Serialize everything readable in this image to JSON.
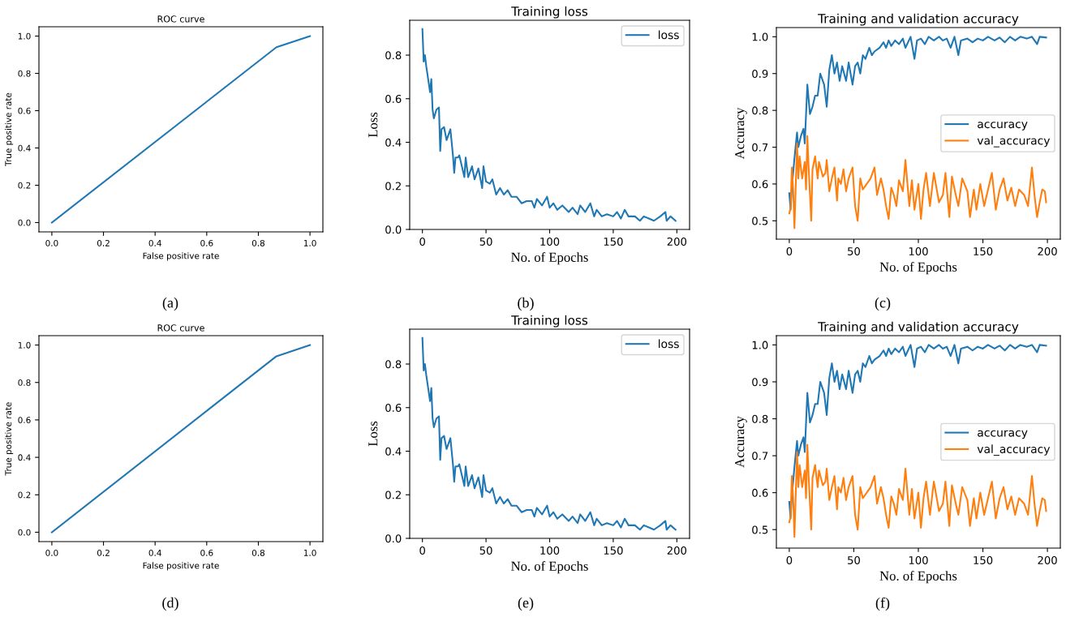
{
  "chart_data": [
    {
      "type": "line",
      "title": "ROC curve",
      "xlabel": "False positive rate",
      "ylabel": "True positive rate",
      "annotations": [
        "(a)"
      ],
      "grid": false,
      "legend": false,
      "series": [
        {
          "color": "#1f77b4",
          "x": [
            0,
            0.87,
            1
          ],
          "values": [
            0,
            0.94,
            1
          ]
        }
      ],
      "xlim": [
        -0.05,
        1.05
      ],
      "ylim": [
        -0.05,
        1.05
      ],
      "xticks": [
        {
          "value": 0,
          "label": "0.0"
        },
        {
          "value": 0.2,
          "label": "0.2"
        },
        {
          "value": 0.4,
          "label": "0.4"
        },
        {
          "value": 0.6,
          "label": "0.6"
        },
        {
          "value": 0.8,
          "label": "0.8"
        },
        {
          "value": 1,
          "label": "1.0"
        }
      ],
      "yticks": [
        {
          "value": 0,
          "label": "0.0"
        },
        {
          "value": 0.2,
          "label": "0.2"
        },
        {
          "value": 0.4,
          "label": "0.4"
        },
        {
          "value": 0.6,
          "label": "0.6"
        },
        {
          "value": 0.8,
          "label": "0.8"
        },
        {
          "value": 1,
          "label": "1.0"
        }
      ]
    },
    {
      "type": "line",
      "title": "Training loss",
      "xlabel": "No. of Epochs",
      "ylabel": "Loss",
      "annotations": [
        "(b)"
      ],
      "grid": false,
      "legend": "top right",
      "series": [
        {
          "name": "loss",
          "color": "#1f77b4",
          "x": [
            0,
            1,
            2,
            3,
            6,
            7,
            8,
            9,
            11,
            13,
            14,
            15,
            17,
            19,
            22,
            24,
            25,
            26,
            28,
            29,
            31,
            33,
            34,
            36,
            39,
            41,
            44,
            47,
            48,
            50,
            53,
            55,
            58,
            61,
            64,
            67,
            70,
            74,
            78,
            82,
            86,
            88,
            90,
            94,
            98,
            100,
            103,
            106,
            110,
            115,
            118,
            122,
            124,
            128,
            132,
            135,
            137,
            141,
            145,
            150,
            153,
            156,
            159,
            162,
            167,
            171,
            174,
            178,
            182,
            187,
            191,
            192,
            195,
            199
          ],
          "values": [
            0.92,
            0.77,
            0.8,
            0.75,
            0.63,
            0.69,
            0.55,
            0.51,
            0.55,
            0.56,
            0.36,
            0.46,
            0.47,
            0.41,
            0.46,
            0.34,
            0.26,
            0.33,
            0.33,
            0.34,
            0.29,
            0.24,
            0.33,
            0.24,
            0.29,
            0.23,
            0.28,
            0.19,
            0.29,
            0.22,
            0.21,
            0.23,
            0.16,
            0.19,
            0.16,
            0.18,
            0.15,
            0.15,
            0.12,
            0.13,
            0.13,
            0.1,
            0.14,
            0.11,
            0.15,
            0.1,
            0.12,
            0.09,
            0.11,
            0.08,
            0.1,
            0.07,
            0.11,
            0.08,
            0.12,
            0.06,
            0.09,
            0.06,
            0.07,
            0.06,
            0.08,
            0.05,
            0.09,
            0.06,
            0.06,
            0.04,
            0.06,
            0.05,
            0.04,
            0.06,
            0.08,
            0.04,
            0.06,
            0.04
          ]
        }
      ],
      "xlim": [
        -10,
        210
      ],
      "ylim": [
        0,
        0.96
      ],
      "xticks": [
        0,
        50,
        100,
        150,
        200
      ],
      "yticks": [
        {
          "value": 0,
          "label": "0.0"
        },
        {
          "value": 0.2,
          "label": "0.2"
        },
        {
          "value": 0.4,
          "label": "0.4"
        },
        {
          "value": 0.6,
          "label": "0.6"
        },
        {
          "value": 0.8,
          "label": "0.8"
        }
      ]
    },
    {
      "type": "line",
      "title": "Training and validation accuracy",
      "xlabel": "No. of Epochs",
      "ylabel": "Accuracy",
      "annotations": [
        "(c)"
      ],
      "grid": false,
      "legend": "right",
      "series": [
        {
          "name": "accuracy",
          "color": "#1f77b4",
          "x": [
            0,
            1,
            2,
            4,
            6,
            7,
            9,
            11,
            12,
            14,
            16,
            18,
            20,
            22,
            24,
            27,
            29,
            31,
            33,
            35,
            37,
            39,
            41,
            44,
            46,
            49,
            51,
            53,
            55,
            57,
            59,
            62,
            64,
            66,
            70,
            73,
            75,
            77,
            79,
            82,
            85,
            88,
            90,
            94,
            97,
            99,
            102,
            105,
            108,
            112,
            116,
            119,
            122,
            125,
            128,
            131,
            133,
            138,
            142,
            146,
            150,
            154,
            159,
            163,
            167,
            171,
            175,
            179,
            184,
            188,
            192,
            194,
            199
          ],
          "values": [
            0.575,
            0.53,
            0.59,
            0.67,
            0.74,
            0.7,
            0.73,
            0.75,
            0.71,
            0.87,
            0.79,
            0.81,
            0.84,
            0.84,
            0.9,
            0.87,
            0.81,
            0.91,
            0.95,
            0.9,
            0.93,
            0.88,
            0.92,
            0.88,
            0.93,
            0.87,
            0.92,
            0.93,
            0.9,
            0.95,
            0.94,
            0.97,
            0.95,
            0.96,
            0.97,
            0.985,
            0.97,
            0.99,
            0.975,
            0.99,
            0.98,
            0.995,
            0.97,
            1.0,
            0.94,
            0.99,
            0.995,
            0.98,
            1.0,
            0.99,
            1.0,
            0.99,
            0.995,
            0.97,
            1.0,
            0.95,
            0.99,
            0.995,
            0.985,
            0.995,
            0.99,
            1.0,
            0.99,
            0.998,
            0.985,
            1.0,
            0.99,
            1.0,
            0.995,
            1.0,
            0.98,
            1.0,
            0.998
          ]
        },
        {
          "name": "val_accuracy",
          "color": "#ff7f0e",
          "x": [
            0,
            1,
            2,
            3,
            4,
            6,
            7,
            8,
            10,
            12,
            13,
            14,
            15,
            17,
            18,
            20,
            22,
            23,
            26,
            28,
            29,
            31,
            33,
            35,
            37,
            38,
            40,
            42,
            44,
            46,
            49,
            51,
            53,
            55,
            57,
            60,
            63,
            66,
            68,
            71,
            73,
            75,
            77,
            79,
            81,
            83,
            85,
            88,
            90,
            93,
            95,
            97,
            100,
            102,
            104,
            106,
            109,
            112,
            116,
            119,
            121,
            124,
            126,
            129,
            131,
            134,
            138,
            140,
            143,
            145,
            148,
            151,
            154,
            157,
            160,
            163,
            166,
            169,
            172,
            175,
            178,
            182,
            185,
            188,
            190,
            192,
            194,
            196,
            198,
            199
          ],
          "values": [
            0.52,
            0.535,
            0.645,
            0.585,
            0.48,
            0.71,
            0.615,
            0.675,
            0.615,
            0.66,
            0.585,
            0.73,
            0.645,
            0.5,
            0.64,
            0.675,
            0.615,
            0.66,
            0.62,
            0.63,
            0.665,
            0.58,
            0.615,
            0.645,
            0.555,
            0.615,
            0.6,
            0.64,
            0.58,
            0.615,
            0.645,
            0.54,
            0.5,
            0.615,
            0.585,
            0.6,
            0.615,
            0.645,
            0.57,
            0.615,
            0.585,
            0.54,
            0.505,
            0.59,
            0.57,
            0.54,
            0.61,
            0.58,
            0.665,
            0.54,
            0.61,
            0.53,
            0.6,
            0.505,
            0.585,
            0.63,
            0.54,
            0.63,
            0.55,
            0.57,
            0.63,
            0.51,
            0.62,
            0.57,
            0.54,
            0.615,
            0.58,
            0.51,
            0.585,
            0.53,
            0.6,
            0.54,
            0.585,
            0.63,
            0.53,
            0.585,
            0.615,
            0.555,
            0.59,
            0.54,
            0.585,
            0.57,
            0.54,
            0.645,
            0.57,
            0.51,
            0.55,
            0.585,
            0.58,
            0.55
          ]
        }
      ],
      "xlim": [
        -10,
        210
      ],
      "ylim": [
        0.45,
        1.025
      ],
      "xticks": [
        0,
        50,
        100,
        150,
        200
      ],
      "yticks": [
        {
          "value": 0.5,
          "label": "0.5"
        },
        {
          "value": 0.6,
          "label": "0.6"
        },
        {
          "value": 0.7,
          "label": "0.7"
        },
        {
          "value": 0.8,
          "label": "0.8"
        },
        {
          "value": 0.9,
          "label": "0.9"
        },
        {
          "value": 1.0,
          "label": "1.0"
        }
      ]
    },
    {
      "type": "line",
      "title": "ROC curve",
      "xlabel": "False positive rate",
      "ylabel": "True positive rate",
      "annotations": [
        "(d)"
      ],
      "grid": false,
      "legend": false,
      "series": [
        {
          "color": "#1f77b4",
          "x": [
            0,
            0.87,
            1
          ],
          "values": [
            0,
            0.94,
            1
          ]
        }
      ],
      "xlim": [
        -0.05,
        1.05
      ],
      "ylim": [
        -0.05,
        1.05
      ],
      "xticks": [
        {
          "value": 0,
          "label": "0.0"
        },
        {
          "value": 0.2,
          "label": "0.2"
        },
        {
          "value": 0.4,
          "label": "0.4"
        },
        {
          "value": 0.6,
          "label": "0.6"
        },
        {
          "value": 0.8,
          "label": "0.8"
        },
        {
          "value": 1,
          "label": "1.0"
        }
      ],
      "yticks": [
        {
          "value": 0,
          "label": "0.0"
        },
        {
          "value": 0.2,
          "label": "0.2"
        },
        {
          "value": 0.4,
          "label": "0.4"
        },
        {
          "value": 0.6,
          "label": "0.6"
        },
        {
          "value": 0.8,
          "label": "0.8"
        },
        {
          "value": 1,
          "label": "1.0"
        }
      ]
    },
    {
      "type": "line",
      "title": "Training loss",
      "xlabel": "No. of Epochs",
      "ylabel": "Loss",
      "annotations": [
        "(e)"
      ],
      "grid": false,
      "legend": "top right",
      "series": [
        {
          "name": "loss",
          "color": "#1f77b4",
          "x": [
            0,
            1,
            2,
            3,
            6,
            7,
            8,
            9,
            11,
            13,
            14,
            15,
            17,
            19,
            22,
            24,
            25,
            26,
            28,
            29,
            31,
            33,
            34,
            36,
            39,
            41,
            44,
            47,
            48,
            50,
            53,
            55,
            58,
            61,
            64,
            67,
            70,
            74,
            78,
            82,
            86,
            88,
            90,
            94,
            98,
            100,
            103,
            106,
            110,
            115,
            118,
            122,
            124,
            128,
            132,
            135,
            137,
            141,
            145,
            150,
            153,
            156,
            159,
            162,
            167,
            171,
            174,
            178,
            182,
            187,
            191,
            192,
            195,
            199
          ],
          "values": [
            0.92,
            0.77,
            0.8,
            0.75,
            0.63,
            0.69,
            0.55,
            0.51,
            0.55,
            0.56,
            0.36,
            0.46,
            0.47,
            0.41,
            0.46,
            0.34,
            0.26,
            0.33,
            0.33,
            0.34,
            0.29,
            0.24,
            0.33,
            0.24,
            0.29,
            0.23,
            0.28,
            0.19,
            0.29,
            0.22,
            0.21,
            0.23,
            0.16,
            0.19,
            0.16,
            0.18,
            0.15,
            0.15,
            0.12,
            0.13,
            0.13,
            0.1,
            0.14,
            0.11,
            0.15,
            0.1,
            0.12,
            0.09,
            0.11,
            0.08,
            0.1,
            0.07,
            0.11,
            0.08,
            0.12,
            0.06,
            0.09,
            0.06,
            0.07,
            0.06,
            0.08,
            0.05,
            0.09,
            0.06,
            0.06,
            0.04,
            0.06,
            0.05,
            0.04,
            0.06,
            0.08,
            0.04,
            0.06,
            0.04
          ]
        }
      ],
      "xlim": [
        -10,
        210
      ],
      "ylim": [
        0,
        0.96
      ],
      "xticks": [
        0,
        50,
        100,
        150,
        200
      ],
      "yticks": [
        {
          "value": 0,
          "label": "0.0"
        },
        {
          "value": 0.2,
          "label": "0.2"
        },
        {
          "value": 0.4,
          "label": "0.4"
        },
        {
          "value": 0.6,
          "label": "0.6"
        },
        {
          "value": 0.8,
          "label": "0.8"
        }
      ]
    },
    {
      "type": "line",
      "title": "Training and validation accuracy",
      "xlabel": "No. of Epochs",
      "ylabel": "Accuracy",
      "annotations": [
        "(f)"
      ],
      "grid": false,
      "legend": "right",
      "series": [
        {
          "name": "accuracy",
          "color": "#1f77b4",
          "x": [
            0,
            1,
            2,
            4,
            6,
            7,
            9,
            11,
            12,
            14,
            16,
            18,
            20,
            22,
            24,
            27,
            29,
            31,
            33,
            35,
            37,
            39,
            41,
            44,
            46,
            49,
            51,
            53,
            55,
            57,
            59,
            62,
            64,
            66,
            70,
            73,
            75,
            77,
            79,
            82,
            85,
            88,
            90,
            94,
            97,
            99,
            102,
            105,
            108,
            112,
            116,
            119,
            122,
            125,
            128,
            131,
            133,
            138,
            142,
            146,
            150,
            154,
            159,
            163,
            167,
            171,
            175,
            179,
            184,
            188,
            192,
            194,
            199
          ],
          "values": [
            0.575,
            0.53,
            0.59,
            0.67,
            0.74,
            0.7,
            0.73,
            0.75,
            0.71,
            0.87,
            0.79,
            0.81,
            0.84,
            0.84,
            0.9,
            0.87,
            0.81,
            0.91,
            0.95,
            0.9,
            0.93,
            0.88,
            0.92,
            0.88,
            0.93,
            0.87,
            0.92,
            0.93,
            0.9,
            0.95,
            0.94,
            0.97,
            0.95,
            0.96,
            0.97,
            0.985,
            0.97,
            0.99,
            0.975,
            0.99,
            0.98,
            0.995,
            0.97,
            1.0,
            0.94,
            0.99,
            0.995,
            0.98,
            1.0,
            0.99,
            1.0,
            0.99,
            0.995,
            0.97,
            1.0,
            0.95,
            0.99,
            0.995,
            0.985,
            0.995,
            0.99,
            1.0,
            0.99,
            0.998,
            0.985,
            1.0,
            0.99,
            1.0,
            0.995,
            1.0,
            0.98,
            1.0,
            0.998
          ]
        },
        {
          "name": "val_accuracy",
          "color": "#ff7f0e",
          "x": [
            0,
            1,
            2,
            3,
            4,
            6,
            7,
            8,
            10,
            12,
            13,
            14,
            15,
            17,
            18,
            20,
            22,
            23,
            26,
            28,
            29,
            31,
            33,
            35,
            37,
            38,
            40,
            42,
            44,
            46,
            49,
            51,
            53,
            55,
            57,
            60,
            63,
            66,
            68,
            71,
            73,
            75,
            77,
            79,
            81,
            83,
            85,
            88,
            90,
            93,
            95,
            97,
            100,
            102,
            104,
            106,
            109,
            112,
            116,
            119,
            121,
            124,
            126,
            129,
            131,
            134,
            138,
            140,
            143,
            145,
            148,
            151,
            154,
            157,
            160,
            163,
            166,
            169,
            172,
            175,
            178,
            182,
            185,
            188,
            190,
            192,
            194,
            196,
            198,
            199
          ],
          "values": [
            0.52,
            0.535,
            0.645,
            0.585,
            0.48,
            0.71,
            0.615,
            0.675,
            0.615,
            0.66,
            0.585,
            0.73,
            0.645,
            0.5,
            0.64,
            0.675,
            0.615,
            0.66,
            0.62,
            0.63,
            0.665,
            0.58,
            0.615,
            0.645,
            0.555,
            0.615,
            0.6,
            0.64,
            0.58,
            0.615,
            0.645,
            0.54,
            0.5,
            0.615,
            0.585,
            0.6,
            0.615,
            0.645,
            0.57,
            0.615,
            0.585,
            0.54,
            0.505,
            0.59,
            0.57,
            0.54,
            0.61,
            0.58,
            0.665,
            0.54,
            0.61,
            0.53,
            0.6,
            0.505,
            0.585,
            0.63,
            0.54,
            0.63,
            0.55,
            0.57,
            0.63,
            0.51,
            0.62,
            0.57,
            0.54,
            0.615,
            0.58,
            0.51,
            0.585,
            0.53,
            0.6,
            0.54,
            0.585,
            0.63,
            0.53,
            0.585,
            0.615,
            0.555,
            0.59,
            0.54,
            0.585,
            0.57,
            0.54,
            0.645,
            0.57,
            0.51,
            0.55,
            0.585,
            0.58,
            0.55
          ]
        }
      ],
      "xlim": [
        -10,
        210
      ],
      "ylim": [
        0.45,
        1.025
      ],
      "xticks": [
        0,
        50,
        100,
        150,
        200
      ],
      "yticks": [
        {
          "value": 0.5,
          "label": "0.5"
        },
        {
          "value": 0.6,
          "label": "0.6"
        },
        {
          "value": 0.7,
          "label": "0.7"
        },
        {
          "value": 0.8,
          "label": "0.8"
        },
        {
          "value": 0.9,
          "label": "0.9"
        },
        {
          "value": 1.0,
          "label": "1.0"
        }
      ]
    }
  ]
}
